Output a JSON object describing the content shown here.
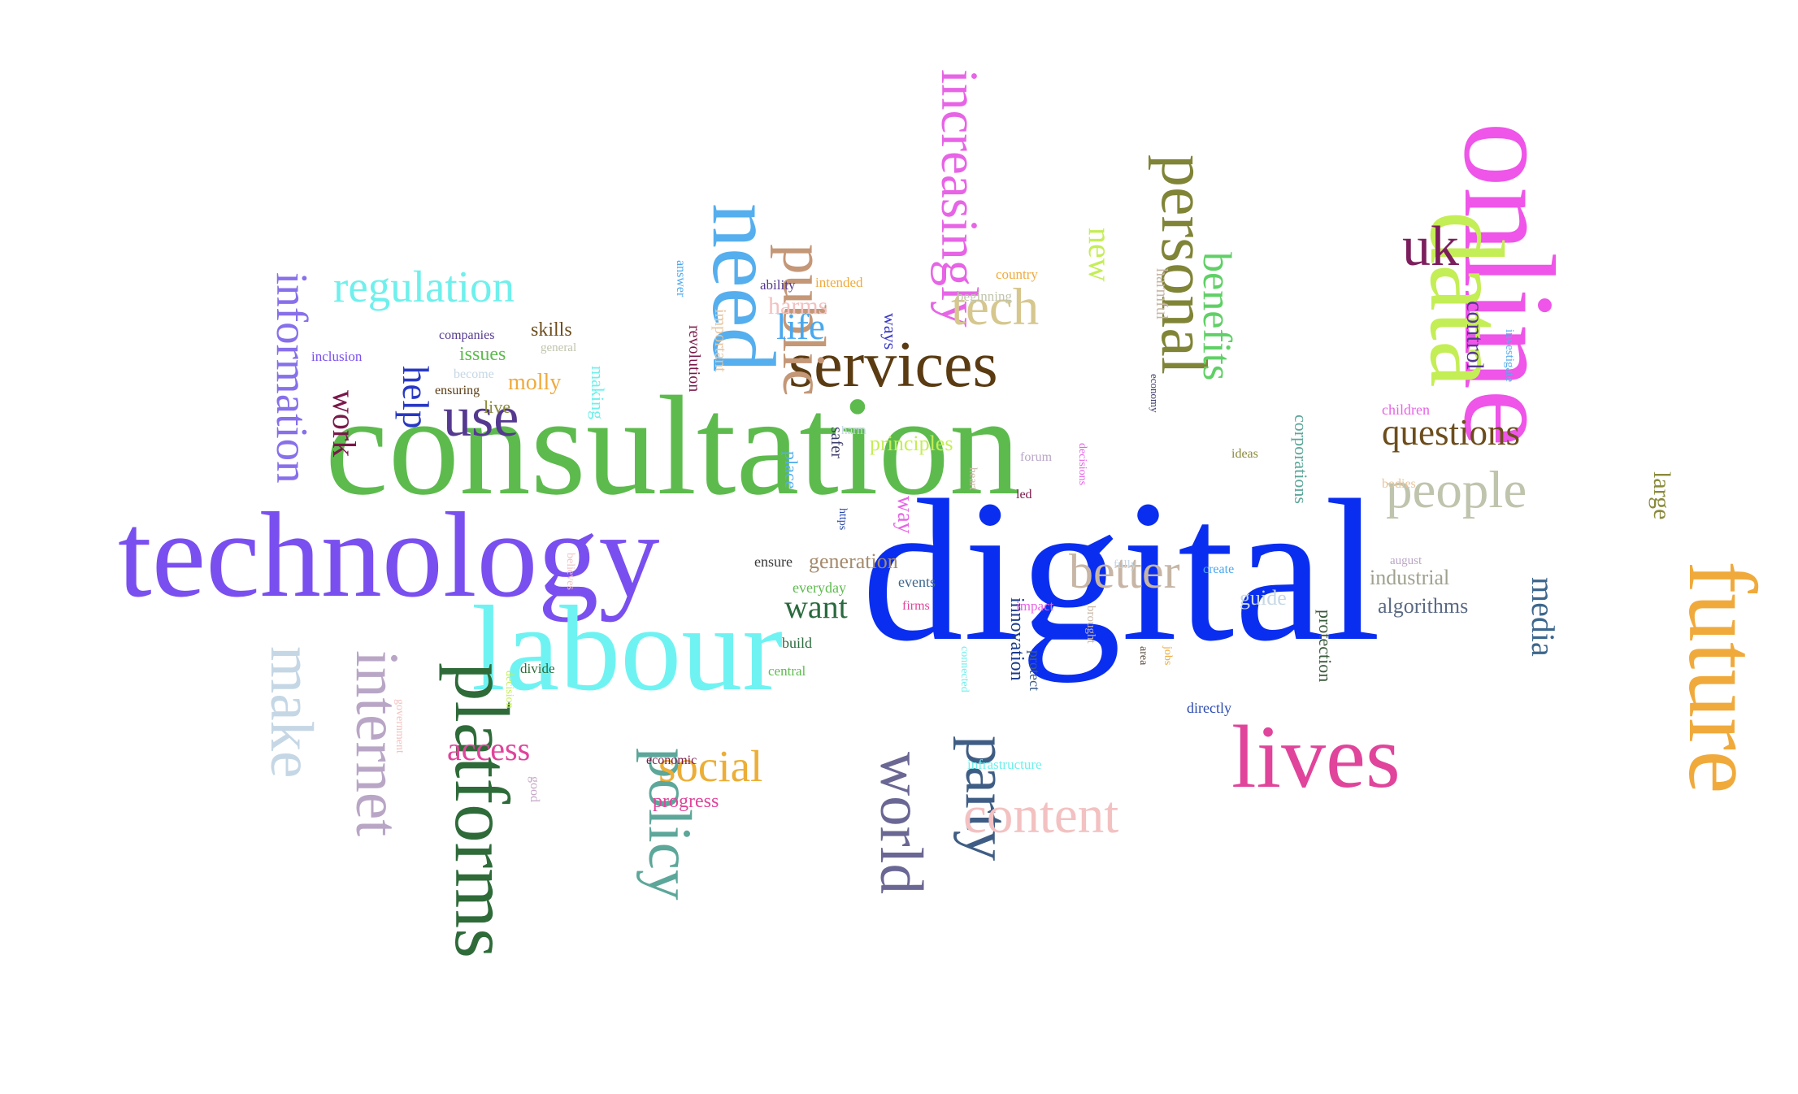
{
  "words": [
    {
      "text": "digital",
      "color": "#0a2ef0"
    },
    {
      "text": "consultation",
      "color": "#5dbb4d"
    },
    {
      "text": "technology",
      "color": "#7a4ff0"
    },
    {
      "text": "online",
      "color": "#ee55e8"
    },
    {
      "text": "labour",
      "color": "#6ff3f2"
    },
    {
      "text": "future",
      "color": "#f0aa3c"
    },
    {
      "text": "data",
      "color": "#c4ee55"
    },
    {
      "text": "need",
      "color": "#55aeee"
    },
    {
      "text": "lives",
      "color": "#e0449b"
    },
    {
      "text": "platforms",
      "color": "#2e6b39"
    },
    {
      "text": "services",
      "color": "#5a3b12"
    },
    {
      "text": "personal",
      "color": "#808436"
    },
    {
      "text": "public",
      "color": "#c49777"
    },
    {
      "text": "party",
      "color": "#3f5d84"
    },
    {
      "text": "policy",
      "color": "#5ca79a"
    },
    {
      "text": "world",
      "color": "#6a6794"
    },
    {
      "text": "internet",
      "color": "#b9a6c6"
    },
    {
      "text": "make",
      "color": "#c5d7e5"
    },
    {
      "text": "content",
      "color": "#f3c1c1"
    },
    {
      "text": "people",
      "color": "#bfc4ad"
    },
    {
      "text": "increasingly",
      "color": "#e764e6"
    },
    {
      "text": "information",
      "color": "#8870eb"
    },
    {
      "text": "use",
      "color": "#553990"
    },
    {
      "text": "uk",
      "color": "#7c1e5d"
    },
    {
      "text": "better",
      "color": "#c7b6a5"
    },
    {
      "text": "regulation",
      "color": "#6ff0ec"
    },
    {
      "text": "tech",
      "color": "#d6c78e"
    },
    {
      "text": "social",
      "color": "#ecae36"
    },
    {
      "text": "benefits",
      "color": "#5fd065"
    },
    {
      "text": "questions",
      "color": "#6c4d1c"
    },
    {
      "text": "media",
      "color": "#3d678d"
    },
    {
      "text": "access",
      "color": "#e0449b"
    },
    {
      "text": "help",
      "color": "#2838c4"
    },
    {
      "text": "work",
      "color": "#7a1849"
    },
    {
      "text": "want",
      "color": "#2a6a3e"
    },
    {
      "text": "life",
      "color": "#4aa8ee"
    },
    {
      "text": "new",
      "color": "#c4ee55"
    },
    {
      "text": "large",
      "color": "#8a8a3a"
    },
    {
      "text": "control",
      "color": "#553990"
    },
    {
      "text": "way",
      "color": "#e764e6"
    },
    {
      "text": "harms",
      "color": "#f3c1c1"
    },
    {
      "text": "molly",
      "color": "#f0aa3c"
    },
    {
      "text": "generation",
      "color": "#a58b6b"
    },
    {
      "text": "principles",
      "color": "#c4ee55"
    },
    {
      "text": "algorithms",
      "color": "#5a6a84"
    },
    {
      "text": "innovation",
      "color": "#1a3a8a"
    },
    {
      "text": "protection",
      "color": "#3a5a3a"
    },
    {
      "text": "industrial",
      "color": "#a0a090"
    },
    {
      "text": "guide",
      "color": "#c5d7e5"
    },
    {
      "text": "corporations",
      "color": "#5ca79a"
    },
    {
      "text": "issues",
      "color": "#5dbb4d"
    },
    {
      "text": "skills",
      "color": "#6c4d1c"
    },
    {
      "text": "ways",
      "color": "#3838c4"
    },
    {
      "text": "live",
      "color": "#8a8a3a"
    },
    {
      "text": "making",
      "color": "#6ff0ec"
    },
    {
      "text": "progress",
      "color": "#e0449b"
    },
    {
      "text": "revolution",
      "color": "#7a1849"
    },
    {
      "text": "important",
      "color": "#e7c39b"
    },
    {
      "text": "harmful",
      "color": "#c7b6a5"
    },
    {
      "text": "safer",
      "color": "#3d3d6a"
    },
    {
      "text": "place",
      "color": "#55aeee"
    },
    {
      "text": "ensure",
      "color": "#3a3a3a"
    },
    {
      "text": "everyday",
      "color": "#5dbb4d"
    },
    {
      "text": "events",
      "color": "#3d678d"
    },
    {
      "text": "protect",
      "color": "#3a5a8a"
    },
    {
      "text": "build",
      "color": "#2a6a3e"
    },
    {
      "text": "directly",
      "color": "#2a4ab0"
    },
    {
      "text": "children",
      "color": "#e764e6"
    },
    {
      "text": "investigate",
      "color": "#55aeee"
    },
    {
      "text": "bodies",
      "color": "#e7c39b"
    },
    {
      "text": "august",
      "color": "#b9a6c6"
    },
    {
      "text": "create",
      "color": "#4aa8ee"
    },
    {
      "text": "fully",
      "color": "#c5d7e5"
    },
    {
      "text": "impact",
      "color": "#e764e6"
    },
    {
      "text": "brought",
      "color": "#c7b6a5"
    },
    {
      "text": "area",
      "color": "#5a4a3a"
    },
    {
      "text": "jobs",
      "color": "#f0aa3c"
    },
    {
      "text": "infrastructure",
      "color": "#6ff0ec"
    },
    {
      "text": "connected",
      "color": "#6ff0ec"
    },
    {
      "text": "firms",
      "color": "#e0449b"
    },
    {
      "text": "central",
      "color": "#5dbb4d"
    },
    {
      "text": "divide",
      "color": "#2e6b39"
    },
    {
      "text": "economic",
      "color": "#7a1849"
    },
    {
      "text": "decision",
      "color": "#c4ee55"
    },
    {
      "text": "good",
      "color": "#c5a6c6"
    },
    {
      "text": "government",
      "color": "#f3c1c1"
    },
    {
      "text": "believes",
      "color": "#f3c1c1"
    },
    {
      "text": "https",
      "color": "#2a4ab0"
    },
    {
      "text": "heart",
      "color": "#c7b6a5"
    },
    {
      "text": "led",
      "color": "#7a1849"
    },
    {
      "text": "forum",
      "color": "#b9a6c6"
    },
    {
      "text": "decisions",
      "color": "#e764e6"
    },
    {
      "text": "ideas",
      "color": "#8a8a3a"
    },
    {
      "text": "economy",
      "color": "#3d3d6a"
    },
    {
      "text": "harm",
      "color": "#c5d7e5"
    },
    {
      "text": "beginning",
      "color": "#bfc4ad"
    },
    {
      "text": "country",
      "color": "#f0aa3c"
    },
    {
      "text": "ability",
      "color": "#553990"
    },
    {
      "text": "intended",
      "color": "#f0aa3c"
    },
    {
      "text": "answer",
      "color": "#4aa8ee"
    },
    {
      "text": "general",
      "color": "#bfc4ad"
    },
    {
      "text": "companies",
      "color": "#553990"
    },
    {
      "text": "inclusion",
      "color": "#7a4ff0"
    },
    {
      "text": "become",
      "color": "#c5d7e5"
    },
    {
      "text": "ensuring",
      "color": "#5a3b12"
    }
  ]
}
